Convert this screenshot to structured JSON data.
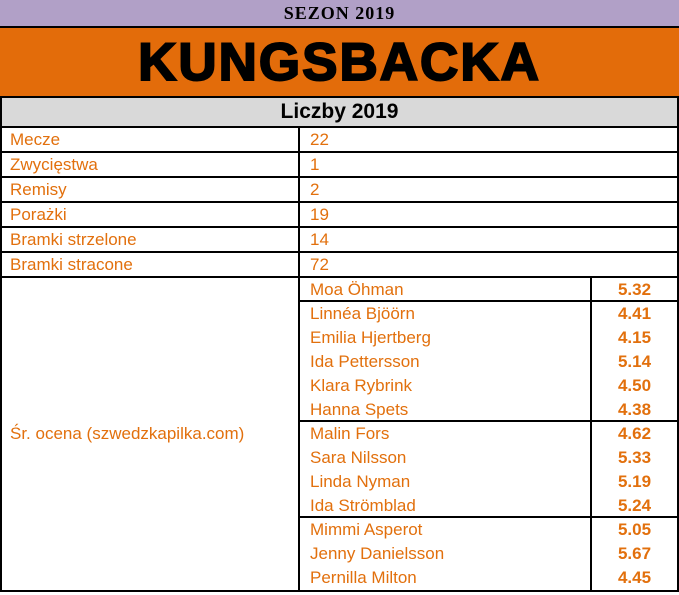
{
  "header": {
    "season": "SEZON 2019",
    "team": "KUNGSBACKA",
    "section": "Liczby 2019"
  },
  "colors": {
    "lavender_bar": "#B1A0C7",
    "banner_orange": "#E36C0A",
    "section_gray": "#D9D9D9",
    "text_orange": "#E2700D",
    "border_black": "#000000"
  },
  "stats": [
    {
      "label": "Mecze",
      "value": "22"
    },
    {
      "label": "Zwycięstwa",
      "value": "1"
    },
    {
      "label": "Remisy",
      "value": "2"
    },
    {
      "label": "Porażki",
      "value": "19"
    },
    {
      "label": "Bramki strzelone",
      "value": "14"
    },
    {
      "label": "Bramki stracone",
      "value": "72"
    }
  ],
  "ratings": {
    "label": "Śr. ocena (szwedzkapilka.com)",
    "players": [
      {
        "name": "Moa Öhman",
        "rating": "5.32"
      },
      {
        "name": "Linnéa Bjöörn",
        "rating": "4.41"
      },
      {
        "name": "Emilia Hjertberg",
        "rating": "4.15"
      },
      {
        "name": "Ida Pettersson",
        "rating": "5.14"
      },
      {
        "name": "Klara Rybrink",
        "rating": "4.50"
      },
      {
        "name": "Hanna Spets",
        "rating": "4.38"
      },
      {
        "name": "Malin Fors",
        "rating": "4.62"
      },
      {
        "name": "Sara Nilsson",
        "rating": "5.33"
      },
      {
        "name": "Linda Nyman",
        "rating": "5.19"
      },
      {
        "name": "Ida Strömblad",
        "rating": "5.24"
      },
      {
        "name": "Mimmi Asperot",
        "rating": "5.05"
      },
      {
        "name": "Jenny Danielsson",
        "rating": "5.67"
      },
      {
        "name": "Pernilla Milton",
        "rating": "4.45"
      }
    ]
  }
}
